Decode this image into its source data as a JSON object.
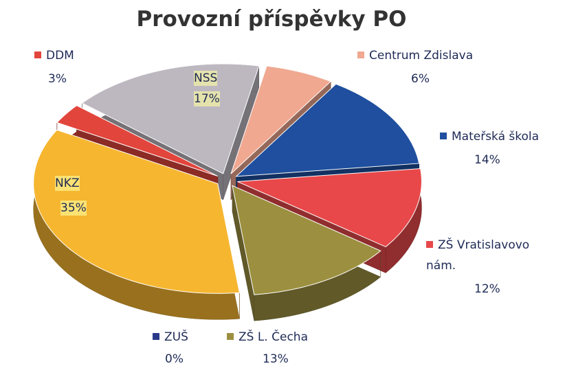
{
  "chart_data": {
    "type": "pie",
    "title": "Provozní příspěvky PO",
    "categories": [
      "NSS",
      "Centrum Zdislava",
      "Mateřská škola",
      "ZŠ Vratislavovo nám.",
      "ZŠ L. Čecha",
      "ZUŠ",
      "NKZ",
      "DDM"
    ],
    "values": [
      17,
      6,
      14,
      12,
      13,
      0,
      35,
      3
    ],
    "value_labels": [
      "17%",
      "6%",
      "14%",
      "12%",
      "13%",
      "0%",
      "35%",
      "3%"
    ],
    "colors": [
      "#bdb8c0",
      "#f0a890",
      "#1f4f9e",
      "#e8484a",
      "#9c9040",
      "#2a3a8a",
      "#f6b630",
      "#e2453c"
    ]
  }
}
